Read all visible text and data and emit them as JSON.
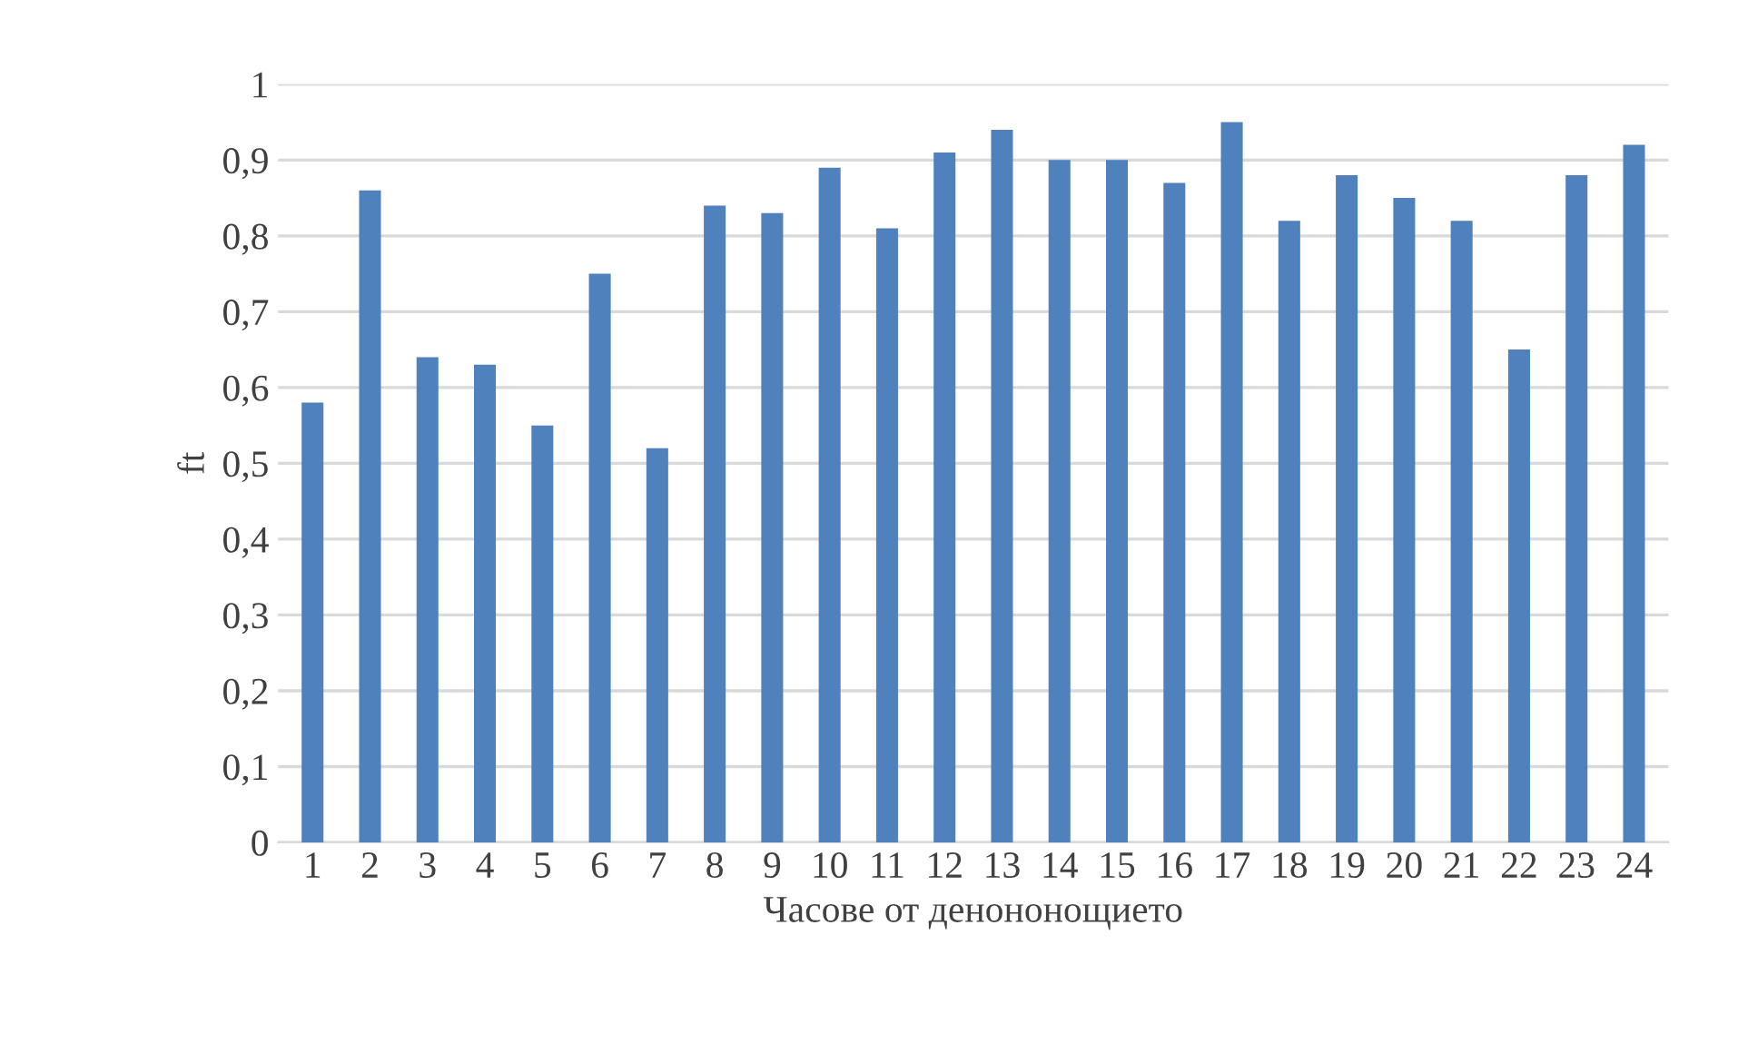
{
  "chart_data": {
    "type": "bar",
    "xlabel": "Часове от денононощието",
    "ylabel": "ft",
    "categories": [
      "1",
      "2",
      "3",
      "4",
      "5",
      "6",
      "7",
      "8",
      "9",
      "10",
      "11",
      "12",
      "13",
      "14",
      "15",
      "16",
      "17",
      "18",
      "19",
      "20",
      "21",
      "22",
      "23",
      "24"
    ],
    "values": [
      0.58,
      0.86,
      0.64,
      0.63,
      0.55,
      0.75,
      0.52,
      0.84,
      0.83,
      0.89,
      0.81,
      0.91,
      0.94,
      0.9,
      0.9,
      0.87,
      0.95,
      0.82,
      0.88,
      0.85,
      0.82,
      0.65,
      0.88,
      0.92
    ],
    "color": "#4f81bd",
    "ylim": [
      0,
      1
    ],
    "yticks": [
      0,
      {
        "value": 0.1,
        "label": "0,1"
      },
      {
        "value": 0.2,
        "label": "0,2"
      },
      {
        "value": 0.3,
        "label": "0,3"
      },
      {
        "value": 0.4,
        "label": "0,4"
      },
      {
        "value": 0.5,
        "label": "0,5"
      },
      {
        "value": 0.6,
        "label": "0,6"
      },
      {
        "value": 0.7,
        "label": "0,7"
      },
      {
        "value": 0.8,
        "label": "0,8"
      },
      {
        "value": 0.9,
        "label": "0,9"
      },
      1
    ],
    "grid": "y"
  }
}
